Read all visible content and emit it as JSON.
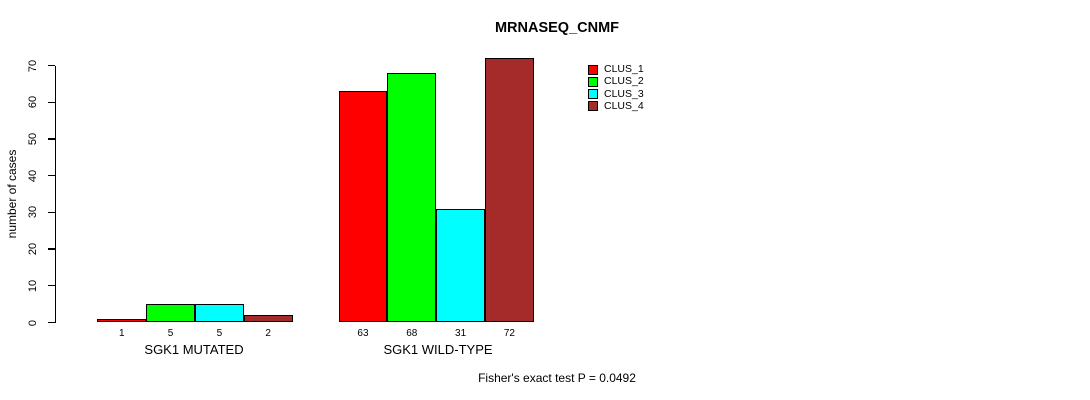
{
  "chart_data": {
    "type": "bar",
    "title": "MRNASEQ_CNMF",
    "ylabel": "number of cases",
    "xlabel": "",
    "ylim": [
      0,
      70
    ],
    "yticks": [
      0,
      10,
      20,
      30,
      40,
      50,
      60,
      70
    ],
    "grid": false,
    "legend_position": "top-right",
    "bar_value_labels": true,
    "categories": [
      "SGK1 MUTATED",
      "SGK1 WILD-TYPE"
    ],
    "series": [
      {
        "name": "CLUS_1",
        "color": "#FF0000",
        "values": [
          1,
          63
        ]
      },
      {
        "name": "CLUS_2",
        "color": "#00FF00",
        "values": [
          5,
          68
        ]
      },
      {
        "name": "CLUS_3",
        "color": "#00FFFF",
        "values": [
          5,
          31
        ]
      },
      {
        "name": "CLUS_4",
        "color": "#A52A2A",
        "values": [
          2,
          72
        ]
      }
    ],
    "annotation": "Fisher's exact test P = 0.0492"
  }
}
